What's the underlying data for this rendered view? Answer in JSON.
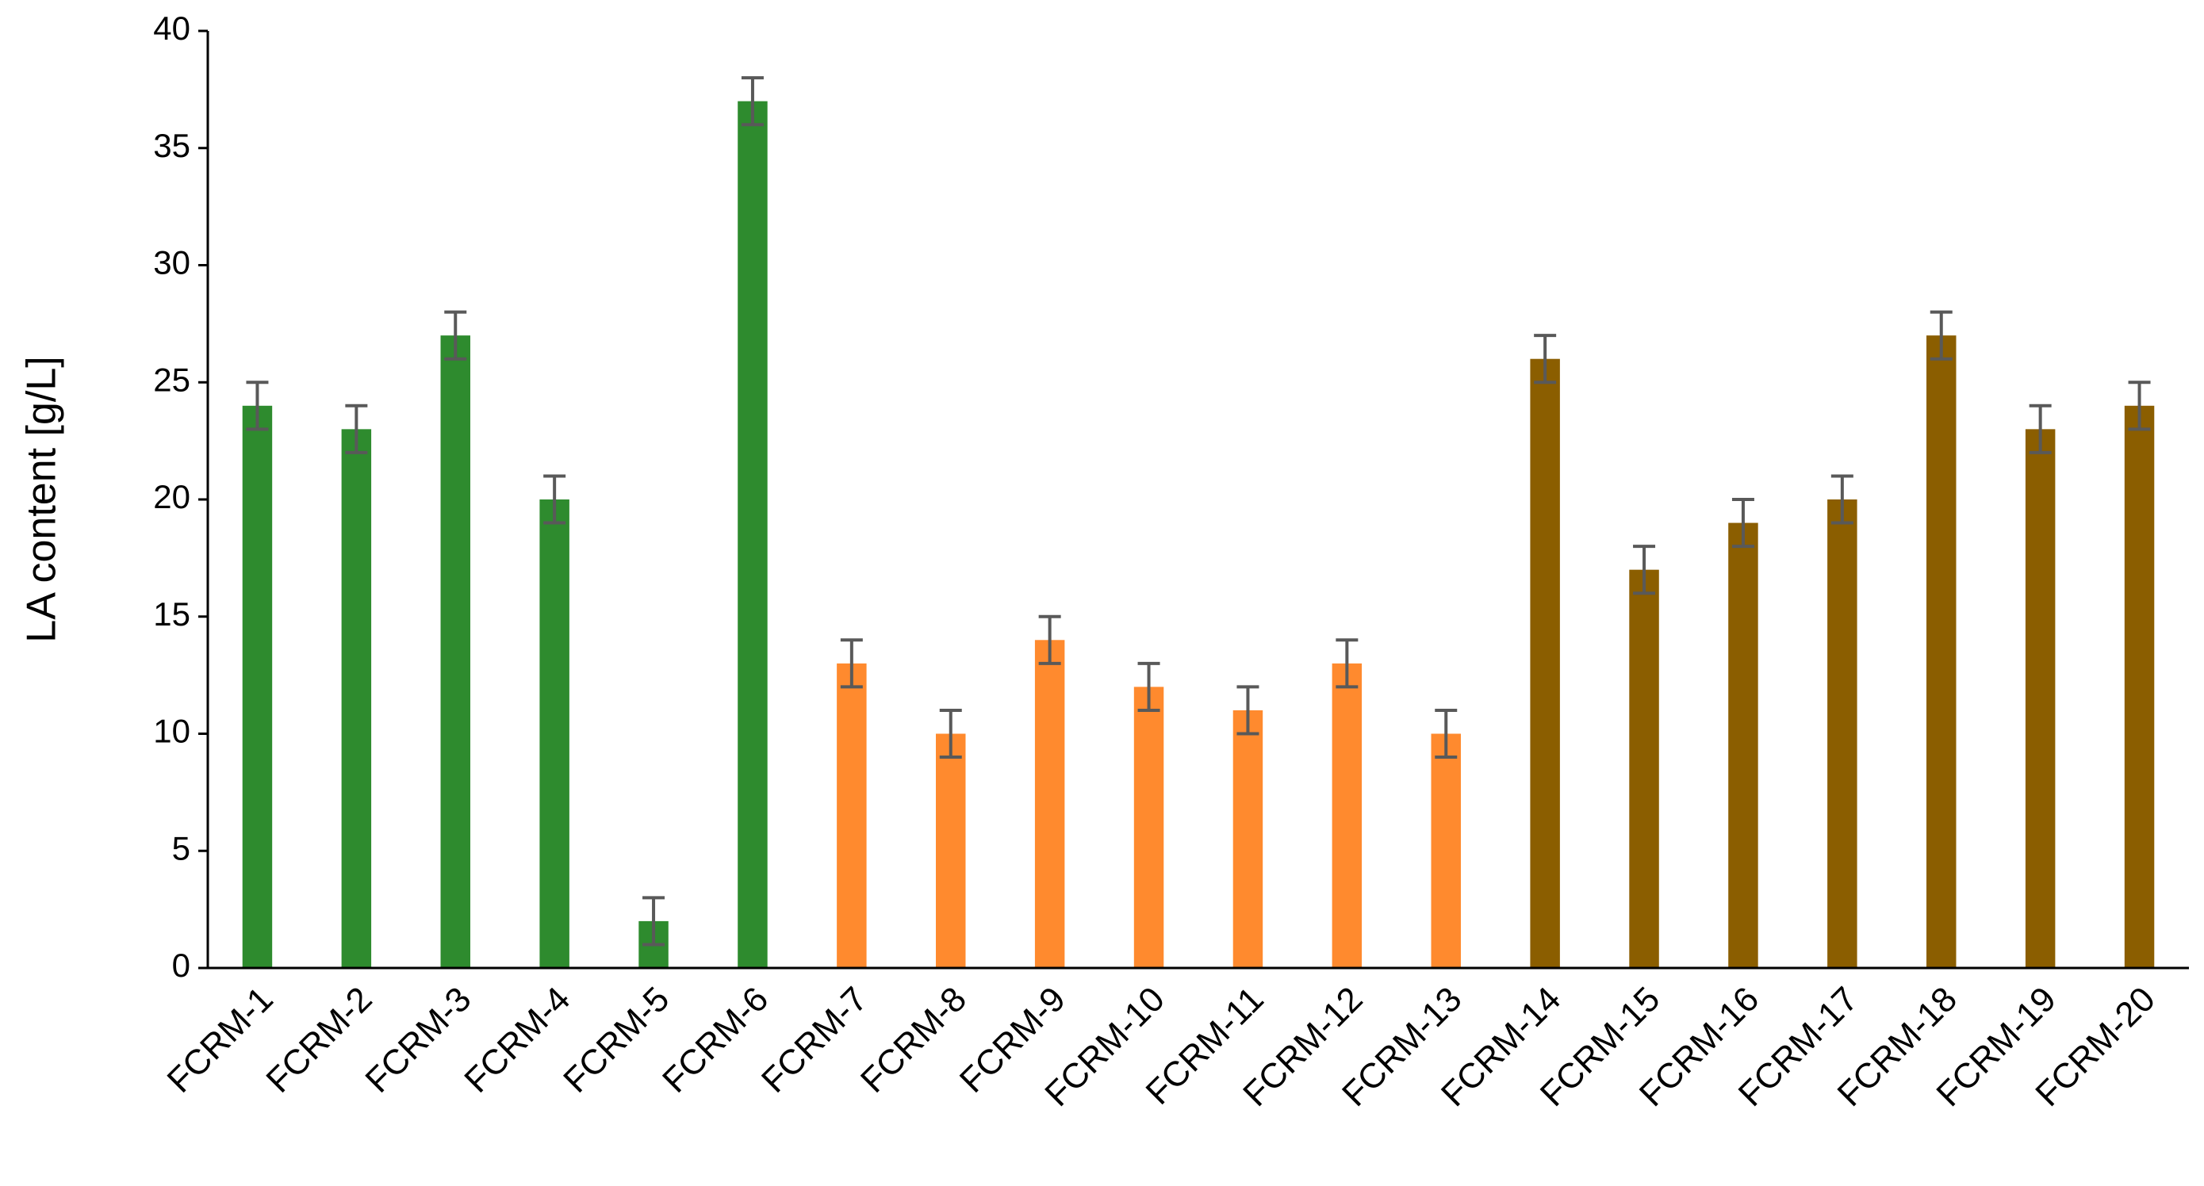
{
  "chart_data": {
    "type": "bar",
    "y_label": "LA content [g/L]",
    "categories": [
      "FCRM-1",
      "FCRM-2",
      "FCRM-3",
      "FCRM-4",
      "FCRM-5",
      "FCRM-6",
      "FCRM-7",
      "FCRM-8",
      "FCRM-9",
      "FCRM-10",
      "FCRM-11",
      "FCRM-12",
      "FCRM-13",
      "FCRM-14",
      "FCRM-15",
      "FCRM-16",
      "FCRM-17",
      "FCRM-18",
      "FCRM-19",
      "FCRM-20"
    ],
    "values": [
      24,
      23,
      27,
      20,
      2,
      37,
      13,
      10,
      14,
      12,
      11,
      13,
      10,
      26,
      17,
      19,
      20,
      27,
      23,
      24
    ],
    "errors": [
      1,
      1,
      1,
      1,
      1,
      1,
      1,
      1,
      1,
      1,
      1,
      1,
      1,
      1,
      1,
      1,
      1,
      1,
      1,
      1
    ],
    "colors": [
      "#2e8b2e",
      "#2e8b2e",
      "#2e8b2e",
      "#2e8b2e",
      "#2e8b2e",
      "#2e8b2e",
      "#ff8a2e",
      "#ff8a2e",
      "#ff8a2e",
      "#ff8a2e",
      "#ff8a2e",
      "#ff8a2e",
      "#ff8a2e",
      "#8b5e00",
      "#8b5e00",
      "#8b5e00",
      "#8b5e00",
      "#8b5e00",
      "#8b5e00",
      "#8b5e00"
    ],
    "error_color": "#595959",
    "ylim": [
      0,
      40
    ],
    "yticks": [
      0,
      5,
      10,
      15,
      20,
      25,
      30,
      35,
      40
    ],
    "grid": false
  }
}
